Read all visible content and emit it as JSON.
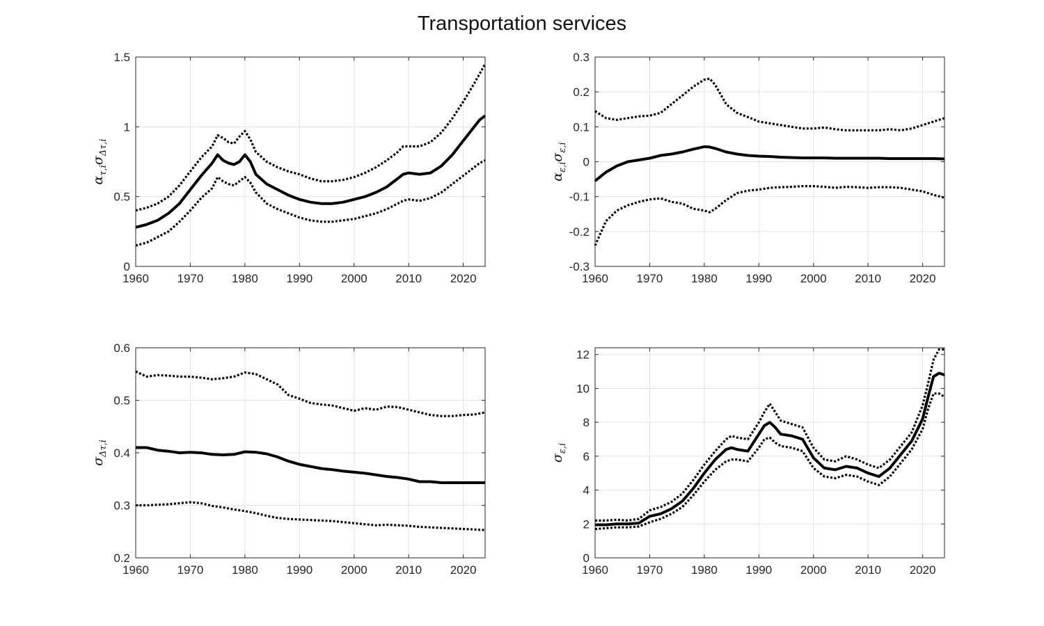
{
  "figure": {
    "title": "Transportation services"
  },
  "chart_data": [
    {
      "type": "line",
      "ylabel_main": "α",
      "ylabel_sub1": "τ,i",
      "ylabel_mid": "σ",
      "ylabel_sub2": "Δτ,i",
      "xlim": [
        1960,
        2024
      ],
      "ylim": [
        0,
        1.5
      ],
      "xticks": [
        1960,
        1970,
        1980,
        1990,
        2000,
        2010,
        2020
      ],
      "yticks": [
        0,
        0.5,
        1,
        1.5
      ],
      "ytick_labels": [
        "0",
        "0.5",
        "1",
        "1.5"
      ],
      "grid": true,
      "x": [
        1960,
        1962,
        1964,
        1966,
        1968,
        1970,
        1972,
        1974,
        1975,
        1976,
        1977,
        1978,
        1979,
        1980,
        1981,
        1982,
        1984,
        1986,
        1988,
        1990,
        1992,
        1994,
        1996,
        1998,
        2000,
        2002,
        2004,
        2006,
        2008,
        2009,
        2010,
        2012,
        2014,
        2016,
        2018,
        2020,
        2022,
        2023,
        2024
      ],
      "series": [
        {
          "style": "dotted",
          "values": [
            0.4,
            0.42,
            0.45,
            0.5,
            0.58,
            0.68,
            0.78,
            0.86,
            0.94,
            0.92,
            0.89,
            0.88,
            0.93,
            0.97,
            0.91,
            0.82,
            0.75,
            0.71,
            0.68,
            0.66,
            0.63,
            0.61,
            0.61,
            0.62,
            0.64,
            0.67,
            0.71,
            0.76,
            0.82,
            0.86,
            0.86,
            0.86,
            0.89,
            0.96,
            1.06,
            1.18,
            1.31,
            1.38,
            1.45
          ]
        },
        {
          "style": "solid",
          "values": [
            0.28,
            0.3,
            0.33,
            0.38,
            0.45,
            0.55,
            0.65,
            0.74,
            0.8,
            0.76,
            0.74,
            0.73,
            0.75,
            0.8,
            0.75,
            0.66,
            0.59,
            0.55,
            0.51,
            0.48,
            0.46,
            0.45,
            0.45,
            0.46,
            0.48,
            0.5,
            0.53,
            0.57,
            0.63,
            0.66,
            0.67,
            0.66,
            0.67,
            0.72,
            0.8,
            0.9,
            1.0,
            1.05,
            1.08
          ]
        },
        {
          "style": "dotted",
          "values": [
            0.15,
            0.17,
            0.21,
            0.25,
            0.32,
            0.4,
            0.49,
            0.56,
            0.64,
            0.61,
            0.59,
            0.58,
            0.61,
            0.64,
            0.6,
            0.53,
            0.45,
            0.41,
            0.38,
            0.35,
            0.33,
            0.32,
            0.32,
            0.33,
            0.34,
            0.36,
            0.38,
            0.41,
            0.45,
            0.47,
            0.48,
            0.47,
            0.49,
            0.53,
            0.59,
            0.65,
            0.71,
            0.74,
            0.76
          ]
        }
      ]
    },
    {
      "type": "line",
      "ylabel_main": "α",
      "ylabel_sub1": "ε,i",
      "ylabel_mid": "σ",
      "ylabel_sub2": "ε,i",
      "xlim": [
        1960,
        2024
      ],
      "ylim": [
        -0.3,
        0.3
      ],
      "xticks": [
        1960,
        1970,
        1980,
        1990,
        2000,
        2010,
        2020
      ],
      "yticks": [
        -0.3,
        -0.2,
        -0.1,
        0,
        0.1,
        0.2,
        0.3
      ],
      "ytick_labels": [
        "-0.3",
        "-0.2",
        "-0.1",
        "0",
        "0.1",
        "0.2",
        "0.3"
      ],
      "grid": true,
      "x": [
        1960,
        1962,
        1964,
        1966,
        1968,
        1970,
        1972,
        1974,
        1976,
        1978,
        1980,
        1981,
        1982,
        1984,
        1986,
        1988,
        1990,
        1992,
        1994,
        1996,
        1998,
        2000,
        2002,
        2004,
        2006,
        2008,
        2010,
        2012,
        2014,
        2016,
        2018,
        2020,
        2022,
        2024
      ],
      "series": [
        {
          "style": "dotted",
          "values": [
            0.145,
            0.125,
            0.12,
            0.125,
            0.13,
            0.132,
            0.14,
            0.165,
            0.19,
            0.215,
            0.235,
            0.238,
            0.22,
            0.165,
            0.14,
            0.128,
            0.115,
            0.11,
            0.105,
            0.1,
            0.095,
            0.095,
            0.098,
            0.093,
            0.09,
            0.09,
            0.09,
            0.09,
            0.093,
            0.09,
            0.095,
            0.105,
            0.115,
            0.125
          ]
        },
        {
          "style": "solid",
          "values": [
            -0.055,
            -0.03,
            -0.012,
            0.0,
            0.005,
            0.01,
            0.018,
            0.022,
            0.028,
            0.036,
            0.043,
            0.042,
            0.038,
            0.028,
            0.022,
            0.018,
            0.016,
            0.015,
            0.013,
            0.012,
            0.011,
            0.011,
            0.011,
            0.01,
            0.01,
            0.01,
            0.01,
            0.01,
            0.009,
            0.009,
            0.009,
            0.009,
            0.009,
            0.008
          ]
        },
        {
          "style": "dotted",
          "values": [
            -0.24,
            -0.17,
            -0.14,
            -0.125,
            -0.115,
            -0.108,
            -0.105,
            -0.115,
            -0.12,
            -0.135,
            -0.14,
            -0.145,
            -0.135,
            -0.11,
            -0.09,
            -0.083,
            -0.08,
            -0.075,
            -0.073,
            -0.072,
            -0.07,
            -0.07,
            -0.072,
            -0.075,
            -0.072,
            -0.073,
            -0.075,
            -0.073,
            -0.073,
            -0.075,
            -0.08,
            -0.085,
            -0.095,
            -0.103
          ]
        }
      ]
    },
    {
      "type": "line",
      "ylabel_main": "σ",
      "ylabel_sub1": "Δτ,i",
      "ylabel_mid": "",
      "ylabel_sub2": "",
      "xlim": [
        1960,
        2024
      ],
      "ylim": [
        0.2,
        0.6
      ],
      "xticks": [
        1960,
        1970,
        1980,
        1990,
        2000,
        2010,
        2020
      ],
      "yticks": [
        0.2,
        0.3,
        0.4,
        0.5,
        0.6
      ],
      "ytick_labels": [
        "0.2",
        "0.3",
        "0.4",
        "0.5",
        "0.6"
      ],
      "grid": true,
      "x": [
        1960,
        1962,
        1964,
        1966,
        1968,
        1970,
        1972,
        1974,
        1976,
        1978,
        1980,
        1982,
        1984,
        1986,
        1988,
        1990,
        1992,
        1994,
        1996,
        1998,
        2000,
        2002,
        2004,
        2006,
        2008,
        2010,
        2012,
        2014,
        2016,
        2018,
        2020,
        2022,
        2024
      ],
      "series": [
        {
          "style": "dotted",
          "values": [
            0.555,
            0.545,
            0.548,
            0.547,
            0.545,
            0.545,
            0.543,
            0.54,
            0.542,
            0.545,
            0.553,
            0.55,
            0.54,
            0.53,
            0.51,
            0.503,
            0.495,
            0.492,
            0.49,
            0.485,
            0.48,
            0.485,
            0.482,
            0.488,
            0.487,
            0.482,
            0.477,
            0.472,
            0.47,
            0.47,
            0.472,
            0.473,
            0.477
          ]
        },
        {
          "style": "solid",
          "values": [
            0.41,
            0.41,
            0.405,
            0.403,
            0.4,
            0.401,
            0.4,
            0.397,
            0.396,
            0.397,
            0.402,
            0.401,
            0.398,
            0.392,
            0.384,
            0.378,
            0.374,
            0.37,
            0.368,
            0.365,
            0.363,
            0.361,
            0.358,
            0.355,
            0.353,
            0.35,
            0.345,
            0.345,
            0.343,
            0.343,
            0.343,
            0.343,
            0.343
          ]
        },
        {
          "style": "dotted",
          "values": [
            0.3,
            0.3,
            0.301,
            0.302,
            0.304,
            0.306,
            0.304,
            0.299,
            0.296,
            0.292,
            0.289,
            0.285,
            0.28,
            0.276,
            0.274,
            0.273,
            0.272,
            0.271,
            0.27,
            0.268,
            0.266,
            0.264,
            0.262,
            0.263,
            0.262,
            0.261,
            0.259,
            0.258,
            0.257,
            0.256,
            0.255,
            0.254,
            0.253
          ]
        }
      ]
    },
    {
      "type": "line",
      "ylabel_main": "σ",
      "ylabel_sub1": "ε,i",
      "ylabel_mid": "",
      "ylabel_sub2": "",
      "xlim": [
        1960,
        2024
      ],
      "ylim": [
        0,
        12.4
      ],
      "xticks": [
        1960,
        1970,
        1980,
        1990,
        2000,
        2010,
        2020
      ],
      "yticks": [
        0,
        2,
        4,
        6,
        8,
        10,
        12
      ],
      "ytick_labels": [
        "0",
        "2",
        "4",
        "6",
        "8",
        "10",
        "12"
      ],
      "grid": true,
      "x": [
        1960,
        1962,
        1964,
        1966,
        1968,
        1970,
        1972,
        1974,
        1976,
        1978,
        1980,
        1982,
        1984,
        1985,
        1986,
        1988,
        1990,
        1991,
        1992,
        1993,
        1994,
        1996,
        1998,
        2000,
        2002,
        2004,
        2006,
        2008,
        2010,
        2012,
        2014,
        2016,
        2018,
        2020,
        2021,
        2022,
        2023,
        2024
      ],
      "series": [
        {
          "style": "dotted",
          "values": [
            2.2,
            2.2,
            2.25,
            2.2,
            2.3,
            2.8,
            3.0,
            3.3,
            3.8,
            4.6,
            5.5,
            6.3,
            7.0,
            7.2,
            7.1,
            7.0,
            8.0,
            8.6,
            9.1,
            8.6,
            8.1,
            7.9,
            7.7,
            6.5,
            5.8,
            5.7,
            6.0,
            5.8,
            5.5,
            5.3,
            5.8,
            6.6,
            7.4,
            9.0,
            10.3,
            11.7,
            12.3,
            12.3
          ]
        },
        {
          "style": "solid",
          "values": [
            1.95,
            1.95,
            2.0,
            2.0,
            2.05,
            2.45,
            2.6,
            2.9,
            3.35,
            4.1,
            5.0,
            5.8,
            6.4,
            6.5,
            6.4,
            6.3,
            7.3,
            7.8,
            8.0,
            7.7,
            7.3,
            7.2,
            7.0,
            5.9,
            5.3,
            5.2,
            5.4,
            5.3,
            5.0,
            4.8,
            5.3,
            6.1,
            6.9,
            8.2,
            9.5,
            10.7,
            10.9,
            10.8
          ]
        },
        {
          "style": "dotted",
          "values": [
            1.7,
            1.75,
            1.8,
            1.8,
            1.85,
            2.1,
            2.3,
            2.6,
            3.0,
            3.7,
            4.5,
            5.2,
            5.7,
            5.8,
            5.8,
            5.7,
            6.5,
            7.0,
            7.1,
            6.8,
            6.6,
            6.5,
            6.3,
            5.3,
            4.8,
            4.7,
            4.9,
            4.8,
            4.5,
            4.3,
            4.8,
            5.6,
            6.4,
            7.6,
            8.8,
            9.7,
            9.7,
            9.5
          ]
        }
      ]
    }
  ]
}
